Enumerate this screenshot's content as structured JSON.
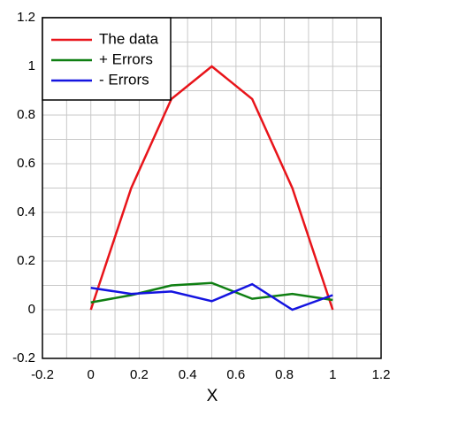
{
  "chart_data": {
    "type": "line",
    "xlabel": "X",
    "x": [
      0,
      0.167,
      0.333,
      0.5,
      0.667,
      0.833,
      1
    ],
    "series": [
      {
        "name": "The data",
        "color": "#e8141a",
        "values": [
          0,
          0.5,
          0.866,
          1,
          0.866,
          0.5,
          0
        ]
      },
      {
        "name": "+ Errors",
        "color": "#0f7f12",
        "values": [
          0.03,
          0.06,
          0.1,
          0.11,
          0.045,
          0.065,
          0.04
        ]
      },
      {
        "name": "- Errors",
        "color": "#1414e0",
        "values": [
          0.09,
          0.065,
          0.075,
          0.035,
          0.105,
          0,
          0.06
        ]
      }
    ],
    "xlim": [
      -0.2,
      1.2
    ],
    "xticks": [
      -0.2,
      0,
      0.2,
      0.4,
      0.6,
      0.8,
      1,
      1.2
    ],
    "ylim": [
      -0.2,
      1.2
    ],
    "yticks": [
      -0.2,
      0,
      0.2,
      0.4,
      0.6,
      0.8,
      1,
      1.2
    ],
    "grid": true,
    "legend": "upper left"
  }
}
